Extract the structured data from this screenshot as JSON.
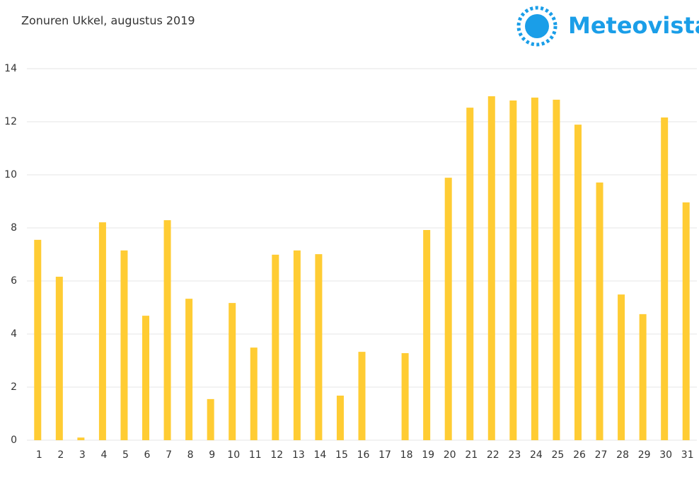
{
  "logo": "Meteovista",
  "chart_data": {
    "type": "bar",
    "title": "Zonuren Ukkel, augustus 2019",
    "categories": [
      "1",
      "2",
      "3",
      "4",
      "5",
      "6",
      "7",
      "8",
      "9",
      "10",
      "11",
      "12",
      "13",
      "14",
      "15",
      "16",
      "17",
      "18",
      "19",
      "20",
      "21",
      "22",
      "23",
      "24",
      "25",
      "26",
      "27",
      "28",
      "29",
      "30",
      "31"
    ],
    "values": [
      7.55,
      6.16,
      0.1,
      8.21,
      7.15,
      4.69,
      8.29,
      5.33,
      1.55,
      5.17,
      3.49,
      6.99,
      7.15,
      7.01,
      1.68,
      3.33,
      0,
      3.28,
      7.92,
      9.89,
      12.53,
      12.96,
      12.8,
      12.91,
      12.83,
      11.89,
      9.71,
      5.49,
      4.75,
      12.16,
      8.96
    ],
    "color": "#ffcc33",
    "ylim": [
      0,
      14
    ],
    "yticks": [
      0,
      2,
      4,
      6,
      8,
      10,
      12,
      14
    ],
    "grid": true
  }
}
